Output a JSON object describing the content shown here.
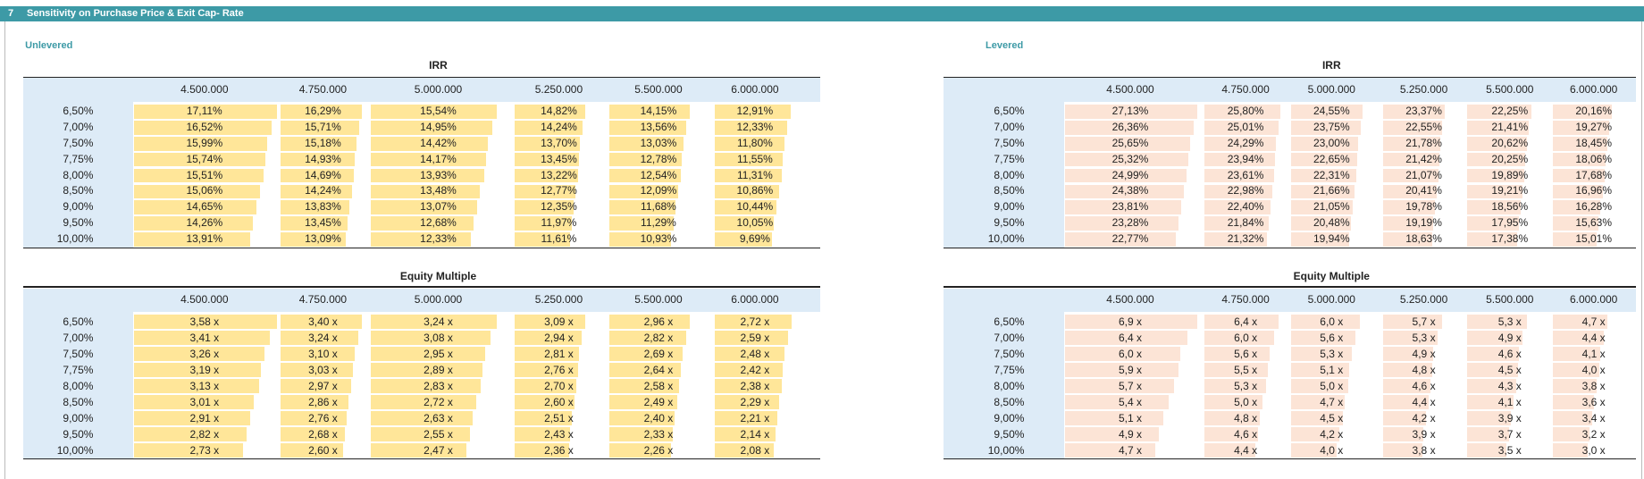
{
  "header": {
    "number": "7",
    "title": "Sensitivity on Purchase Price & Exit Cap- Rate"
  },
  "sections": [
    {
      "label": "Unlevered",
      "tables": [
        {
          "title": "IRR",
          "columns": [
            "4.500.000",
            "4.750.000",
            "5.000.000",
            "5.250.000",
            "5.500.000",
            "6.000.000"
          ],
          "rows": [
            {
              "label": "6,50%",
              "values": [
                17.11,
                16.29,
                15.54,
                14.82,
                14.15,
                12.91
              ],
              "value_labels": [
                "17,11%",
                "16,29%",
                "15,54%",
                "14,82%",
                "14,15%",
                "12,91%"
              ]
            },
            {
              "label": "7,00%",
              "values": [
                16.52,
                15.71,
                14.95,
                14.24,
                13.56,
                12.33
              ],
              "value_labels": [
                "16,52%",
                "15,71%",
                "14,95%",
                "14,24%",
                "13,56%",
                "12,33%"
              ]
            },
            {
              "label": "7,50%",
              "values": [
                15.99,
                15.18,
                14.42,
                13.7,
                13.03,
                11.8
              ],
              "value_labels": [
                "15,99%",
                "15,18%",
                "14,42%",
                "13,70%",
                "13,03%",
                "11,80%"
              ]
            },
            {
              "label": "7,75%",
              "values": [
                15.74,
                14.93,
                14.17,
                13.45,
                12.78,
                11.55
              ],
              "value_labels": [
                "15,74%",
                "14,93%",
                "14,17%",
                "13,45%",
                "12,78%",
                "11,55%"
              ]
            },
            {
              "label": "8,00%",
              "values": [
                15.51,
                14.69,
                13.93,
                13.22,
                12.54,
                11.31
              ],
              "value_labels": [
                "15,51%",
                "14,69%",
                "13,93%",
                "13,22%",
                "12,54%",
                "11,31%"
              ]
            },
            {
              "label": "8,50%",
              "values": [
                15.06,
                14.24,
                13.48,
                12.77,
                12.09,
                10.86
              ],
              "value_labels": [
                "15,06%",
                "14,24%",
                "13,48%",
                "12,77%",
                "12,09%",
                "10,86%"
              ]
            },
            {
              "label": "9,00%",
              "values": [
                14.65,
                13.83,
                13.07,
                12.35,
                11.68,
                10.44
              ],
              "value_labels": [
                "14,65%",
                "13,83%",
                "13,07%",
                "12,35%",
                "11,68%",
                "10,44%"
              ]
            },
            {
              "label": "9,50%",
              "values": [
                14.26,
                13.45,
                12.68,
                11.97,
                11.29,
                10.05
              ],
              "value_labels": [
                "14,26%",
                "13,45%",
                "12,68%",
                "11,97%",
                "11,29%",
                "10,05%"
              ]
            },
            {
              "label": "10,00%",
              "values": [
                13.91,
                13.09,
                12.33,
                11.61,
                10.93,
                9.69
              ],
              "value_labels": [
                "13,91%",
                "13,09%",
                "12,33%",
                "11,61%",
                "10,93%",
                "9,69%"
              ]
            }
          ]
        },
        {
          "title": "Equity Multiple",
          "columns": [
            "4.500.000",
            "4.750.000",
            "5.000.000",
            "5.250.000",
            "5.500.000",
            "6.000.000"
          ],
          "rows": [
            {
              "label": "6,50%",
              "values": [
                3.58,
                3.4,
                3.24,
                3.09,
                2.96,
                2.72
              ],
              "value_labels": [
                "3,58 x",
                "3,40 x",
                "3,24 x",
                "3,09 x",
                "2,96 x",
                "2,72 x"
              ]
            },
            {
              "label": "7,00%",
              "values": [
                3.41,
                3.24,
                3.08,
                2.94,
                2.82,
                2.59
              ],
              "value_labels": [
                "3,41 x",
                "3,24 x",
                "3,08 x",
                "2,94 x",
                "2,82 x",
                "2,59 x"
              ]
            },
            {
              "label": "7,50%",
              "values": [
                3.26,
                3.1,
                2.95,
                2.81,
                2.69,
                2.48
              ],
              "value_labels": [
                "3,26 x",
                "3,10 x",
                "2,95 x",
                "2,81 x",
                "2,69 x",
                "2,48 x"
              ]
            },
            {
              "label": "7,75%",
              "values": [
                3.19,
                3.03,
                2.89,
                2.76,
                2.64,
                2.42
              ],
              "value_labels": [
                "3,19 x",
                "3,03 x",
                "2,89 x",
                "2,76 x",
                "2,64 x",
                "2,42 x"
              ]
            },
            {
              "label": "8,00%",
              "values": [
                3.13,
                2.97,
                2.83,
                2.7,
                2.58,
                2.38
              ],
              "value_labels": [
                "3,13 x",
                "2,97 x",
                "2,83 x",
                "2,70 x",
                "2,58 x",
                "2,38 x"
              ]
            },
            {
              "label": "8,50%",
              "values": [
                3.01,
                2.86,
                2.72,
                2.6,
                2.49,
                2.29
              ],
              "value_labels": [
                "3,01 x",
                "2,86 x",
                "2,72 x",
                "2,60 x",
                "2,49 x",
                "2,29 x"
              ]
            },
            {
              "label": "9,00%",
              "values": [
                2.91,
                2.76,
                2.63,
                2.51,
                2.4,
                2.21
              ],
              "value_labels": [
                "2,91 x",
                "2,76 x",
                "2,63 x",
                "2,51 x",
                "2,40 x",
                "2,21 x"
              ]
            },
            {
              "label": "9,50%",
              "values": [
                2.82,
                2.68,
                2.55,
                2.43,
                2.33,
                2.14
              ],
              "value_labels": [
                "2,82 x",
                "2,68 x",
                "2,55 x",
                "2,43 x",
                "2,33 x",
                "2,14 x"
              ]
            },
            {
              "label": "10,00%",
              "values": [
                2.73,
                2.6,
                2.47,
                2.36,
                2.26,
                2.08
              ],
              "value_labels": [
                "2,73 x",
                "2,60 x",
                "2,47 x",
                "2,36 x",
                "2,26 x",
                "2,08 x"
              ]
            }
          ]
        }
      ]
    },
    {
      "label": "Levered",
      "tables": [
        {
          "title": "IRR",
          "columns": [
            "4.500.000",
            "4.750.000",
            "5.000.000",
            "5.250.000",
            "5.500.000",
            "6.000.000"
          ],
          "rows": [
            {
              "label": "6,50%",
              "values": [
                27.13,
                25.8,
                24.55,
                23.37,
                22.25,
                20.16
              ],
              "value_labels": [
                "27,13%",
                "25,80%",
                "24,55%",
                "23,37%",
                "22,25%",
                "20,16%"
              ]
            },
            {
              "label": "7,00%",
              "values": [
                26.36,
                25.01,
                23.75,
                22.55,
                21.41,
                19.27
              ],
              "value_labels": [
                "26,36%",
                "25,01%",
                "23,75%",
                "22,55%",
                "21,41%",
                "19,27%"
              ]
            },
            {
              "label": "7,50%",
              "values": [
                25.65,
                24.29,
                23.0,
                21.78,
                20.62,
                18.45
              ],
              "value_labels": [
                "25,65%",
                "24,29%",
                "23,00%",
                "21,78%",
                "20,62%",
                "18,45%"
              ]
            },
            {
              "label": "7,75%",
              "values": [
                25.32,
                23.94,
                22.65,
                21.42,
                20.25,
                18.06
              ],
              "value_labels": [
                "25,32%",
                "23,94%",
                "22,65%",
                "21,42%",
                "20,25%",
                "18,06%"
              ]
            },
            {
              "label": "8,00%",
              "values": [
                24.99,
                23.61,
                22.31,
                21.07,
                19.89,
                17.68
              ],
              "value_labels": [
                "24,99%",
                "23,61%",
                "22,31%",
                "21,07%",
                "19,89%",
                "17,68%"
              ]
            },
            {
              "label": "8,50%",
              "values": [
                24.38,
                22.98,
                21.66,
                20.41,
                19.21,
                16.96
              ],
              "value_labels": [
                "24,38%",
                "22,98%",
                "21,66%",
                "20,41%",
                "19,21%",
                "16,96%"
              ]
            },
            {
              "label": "9,00%",
              "values": [
                23.81,
                22.4,
                21.05,
                19.78,
                18.56,
                16.28
              ],
              "value_labels": [
                "23,81%",
                "22,40%",
                "21,05%",
                "19,78%",
                "18,56%",
                "16,28%"
              ]
            },
            {
              "label": "9,50%",
              "values": [
                23.28,
                21.84,
                20.48,
                19.19,
                17.95,
                15.63
              ],
              "value_labels": [
                "23,28%",
                "21,84%",
                "20,48%",
                "19,19%",
                "17,95%",
                "15,63%"
              ]
            },
            {
              "label": "10,00%",
              "values": [
                22.77,
                21.32,
                19.94,
                18.63,
                17.38,
                15.01
              ],
              "value_labels": [
                "22,77%",
                "21,32%",
                "19,94%",
                "18,63%",
                "17,38%",
                "15,01%"
              ]
            }
          ]
        },
        {
          "title": "Equity Multiple",
          "columns": [
            "4.500.000",
            "4.750.000",
            "5.000.000",
            "5.250.000",
            "5.500.000",
            "6.000.000"
          ],
          "rows": [
            {
              "label": "6,50%",
              "values": [
                6.9,
                6.4,
                6.0,
                5.7,
                5.3,
                4.7
              ],
              "value_labels": [
                "6,9 x",
                "6,4 x",
                "6,0 x",
                "5,7 x",
                "5,3 x",
                "4,7 x"
              ]
            },
            {
              "label": "7,00%",
              "values": [
                6.4,
                6.0,
                5.6,
                5.3,
                4.9,
                4.4
              ],
              "value_labels": [
                "6,4 x",
                "6,0 x",
                "5,6 x",
                "5,3 x",
                "4,9 x",
                "4,4 x"
              ]
            },
            {
              "label": "7,50%",
              "values": [
                6.0,
                5.6,
                5.3,
                4.9,
                4.6,
                4.1
              ],
              "value_labels": [
                "6,0 x",
                "5,6 x",
                "5,3 x",
                "4,9 x",
                "4,6 x",
                "4,1 x"
              ]
            },
            {
              "label": "7,75%",
              "values": [
                5.9,
                5.5,
                5.1,
                4.8,
                4.5,
                4.0
              ],
              "value_labels": [
                "5,9 x",
                "5,5 x",
                "5,1 x",
                "4,8 x",
                "4,5 x",
                "4,0 x"
              ]
            },
            {
              "label": "8,00%",
              "values": [
                5.7,
                5.3,
                5.0,
                4.6,
                4.3,
                3.8
              ],
              "value_labels": [
                "5,7 x",
                "5,3 x",
                "5,0 x",
                "4,6 x",
                "4,3 x",
                "3,8 x"
              ]
            },
            {
              "label": "8,50%",
              "values": [
                5.4,
                5.0,
                4.7,
                4.4,
                4.1,
                3.6
              ],
              "value_labels": [
                "5,4 x",
                "5,0 x",
                "4,7 x",
                "4,4 x",
                "4,1 x",
                "3,6 x"
              ]
            },
            {
              "label": "9,00%",
              "values": [
                5.1,
                4.8,
                4.5,
                4.2,
                3.9,
                3.4
              ],
              "value_labels": [
                "5,1 x",
                "4,8 x",
                "4,5 x",
                "4,2 x",
                "3,9 x",
                "3,4 x"
              ]
            },
            {
              "label": "9,50%",
              "values": [
                4.9,
                4.6,
                4.2,
                3.9,
                3.7,
                3.2
              ],
              "value_labels": [
                "4,9 x",
                "4,6 x",
                "4,2 x",
                "3,9 x",
                "3,7 x",
                "3,2 x"
              ]
            },
            {
              "label": "10,00%",
              "values": [
                4.7,
                4.4,
                4.0,
                3.8,
                3.5,
                3.0
              ],
              "value_labels": [
                "4,7 x",
                "4,4 x",
                "4,0 x",
                "3,8 x",
                "3,5 x",
                "3,0 x"
              ]
            }
          ]
        }
      ]
    }
  ]
}
